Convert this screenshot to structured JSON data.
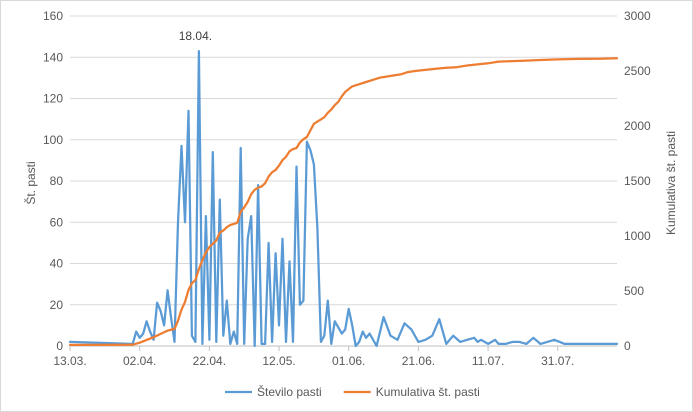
{
  "chart_data": {
    "type": "line",
    "title": "",
    "xlabel": "",
    "ylabel": "Št. pasti",
    "y2label": "Kumulativa št. pasti",
    "ylim": [
      0,
      160
    ],
    "y2lim": [
      0,
      3000
    ],
    "yticks": [
      0,
      20,
      40,
      60,
      80,
      100,
      120,
      140,
      160
    ],
    "y2ticks": [
      0,
      500,
      1000,
      1500,
      2000,
      2500,
      3000
    ],
    "x_range": [
      "2016-03-13",
      "2016-08-17"
    ],
    "xticks": [
      "13.03.",
      "02.04.",
      "22.04.",
      "12.05.",
      "01.06.",
      "21.06.",
      "11.07.",
      "31.07."
    ],
    "x_tick_dates": [
      "2016-03-13",
      "2016-04-02",
      "2016-04-22",
      "2016-05-12",
      "2016-06-01",
      "2016-06-21",
      "2016-07-11",
      "2016-07-31"
    ],
    "grid": true,
    "legend_position": "bottom",
    "annotations": [
      {
        "text": "18.04.",
        "x": "2016-04-18",
        "y": 143
      }
    ],
    "series": [
      {
        "name": "Število pasti",
        "axis": "left",
        "color": "#5b9bd5",
        "x": [
          "2016-03-13",
          "2016-03-31",
          "2016-04-01",
          "2016-04-02",
          "2016-04-03",
          "2016-04-04",
          "2016-04-05",
          "2016-04-06",
          "2016-04-07",
          "2016-04-08",
          "2016-04-09",
          "2016-04-10",
          "2016-04-11",
          "2016-04-12",
          "2016-04-13",
          "2016-04-14",
          "2016-04-15",
          "2016-04-16",
          "2016-04-17",
          "2016-04-18",
          "2016-04-19",
          "2016-04-20",
          "2016-04-21",
          "2016-04-22",
          "2016-04-23",
          "2016-04-24",
          "2016-04-25",
          "2016-04-26",
          "2016-04-27",
          "2016-04-28",
          "2016-04-29",
          "2016-04-30",
          "2016-05-01",
          "2016-05-02",
          "2016-05-03",
          "2016-05-04",
          "2016-05-05",
          "2016-05-06",
          "2016-05-07",
          "2016-05-08",
          "2016-05-09",
          "2016-05-10",
          "2016-05-11",
          "2016-05-12",
          "2016-05-13",
          "2016-05-14",
          "2016-05-15",
          "2016-05-16",
          "2016-05-17",
          "2016-05-18",
          "2016-05-19",
          "2016-05-20",
          "2016-05-21",
          "2016-05-22",
          "2016-05-23",
          "2016-05-24",
          "2016-05-25",
          "2016-05-26",
          "2016-05-27",
          "2016-05-28",
          "2016-05-29",
          "2016-05-30",
          "2016-05-31",
          "2016-06-01",
          "2016-06-02",
          "2016-06-03",
          "2016-06-04",
          "2016-06-05",
          "2016-06-06",
          "2016-06-07",
          "2016-06-09",
          "2016-06-11",
          "2016-06-13",
          "2016-06-15",
          "2016-06-17",
          "2016-06-19",
          "2016-06-21",
          "2016-06-23",
          "2016-06-25",
          "2016-06-27",
          "2016-06-29",
          "2016-07-01",
          "2016-07-03",
          "2016-07-05",
          "2016-07-07",
          "2016-07-08",
          "2016-07-09",
          "2016-07-11",
          "2016-07-12",
          "2016-07-13",
          "2016-07-14",
          "2016-07-16",
          "2016-07-18",
          "2016-07-20",
          "2016-07-22",
          "2016-07-24",
          "2016-07-26",
          "2016-07-28",
          "2016-07-30",
          "2016-08-02",
          "2016-08-17"
        ],
        "values": [
          2,
          1,
          7,
          4,
          6,
          12,
          7,
          3,
          21,
          17,
          10,
          27,
          14,
          2,
          60,
          97,
          60,
          114,
          5,
          2,
          143,
          1,
          63,
          3,
          94,
          2,
          71,
          5,
          22,
          1,
          7,
          1,
          96,
          1,
          52,
          63,
          0,
          78,
          1,
          1,
          50,
          2,
          45,
          10,
          52,
          2,
          41,
          2,
          87,
          20,
          22,
          99,
          95,
          88,
          57,
          2,
          5,
          22,
          1,
          12,
          9,
          6,
          8,
          18,
          10,
          0,
          2,
          7,
          4,
          6,
          0,
          14,
          5,
          3,
          11,
          8,
          2,
          3,
          5,
          13,
          1,
          5,
          2,
          3,
          4,
          2,
          3,
          1,
          2,
          3,
          1,
          1,
          2,
          2,
          1,
          4,
          1,
          2,
          3,
          1,
          1
        ]
      },
      {
        "name": "Kumulativa št. pasti",
        "axis": "right",
        "color": "#ed7d31",
        "x": [
          "2016-03-13",
          "2016-03-31",
          "2016-04-02",
          "2016-04-04",
          "2016-04-06",
          "2016-04-08",
          "2016-04-10",
          "2016-04-12",
          "2016-04-13",
          "2016-04-14",
          "2016-04-15",
          "2016-04-16",
          "2016-04-17",
          "2016-04-18",
          "2016-04-19",
          "2016-04-20",
          "2016-04-21",
          "2016-04-22",
          "2016-04-23",
          "2016-04-24",
          "2016-04-25",
          "2016-04-26",
          "2016-04-27",
          "2016-04-28",
          "2016-04-29",
          "2016-04-30",
          "2016-05-01",
          "2016-05-02",
          "2016-05-03",
          "2016-05-04",
          "2016-05-05",
          "2016-05-06",
          "2016-05-07",
          "2016-05-08",
          "2016-05-09",
          "2016-05-10",
          "2016-05-11",
          "2016-05-12",
          "2016-05-13",
          "2016-05-14",
          "2016-05-15",
          "2016-05-16",
          "2016-05-17",
          "2016-05-18",
          "2016-05-19",
          "2016-05-20",
          "2016-05-21",
          "2016-05-22",
          "2016-05-23",
          "2016-05-24",
          "2016-05-25",
          "2016-05-26",
          "2016-05-27",
          "2016-05-28",
          "2016-05-29",
          "2016-05-30",
          "2016-05-31",
          "2016-06-02",
          "2016-06-04",
          "2016-06-06",
          "2016-06-08",
          "2016-06-10",
          "2016-06-12",
          "2016-06-14",
          "2016-06-16",
          "2016-06-18",
          "2016-06-20",
          "2016-06-23",
          "2016-06-26",
          "2016-06-29",
          "2016-07-02",
          "2016-07-05",
          "2016-07-08",
          "2016-07-11",
          "2016-07-14",
          "2016-07-18",
          "2016-07-22",
          "2016-07-26",
          "2016-07-31",
          "2016-08-06",
          "2016-08-12",
          "2016-08-17"
        ],
        "values": [
          10,
          12,
          30,
          55,
          80,
          110,
          140,
          155,
          230,
          330,
          400,
          510,
          570,
          600,
          700,
          780,
          850,
          900,
          930,
          960,
          1030,
          1050,
          1080,
          1100,
          1110,
          1120,
          1220,
          1260,
          1310,
          1380,
          1420,
          1440,
          1450,
          1480,
          1540,
          1580,
          1600,
          1640,
          1690,
          1720,
          1770,
          1790,
          1800,
          1850,
          1880,
          1900,
          1960,
          2020,
          2040,
          2060,
          2080,
          2120,
          2150,
          2190,
          2220,
          2270,
          2310,
          2360,
          2380,
          2400,
          2420,
          2440,
          2450,
          2460,
          2470,
          2490,
          2500,
          2510,
          2520,
          2530,
          2535,
          2550,
          2560,
          2570,
          2585,
          2590,
          2595,
          2600,
          2605,
          2610,
          2612,
          2615
        ]
      }
    ]
  }
}
